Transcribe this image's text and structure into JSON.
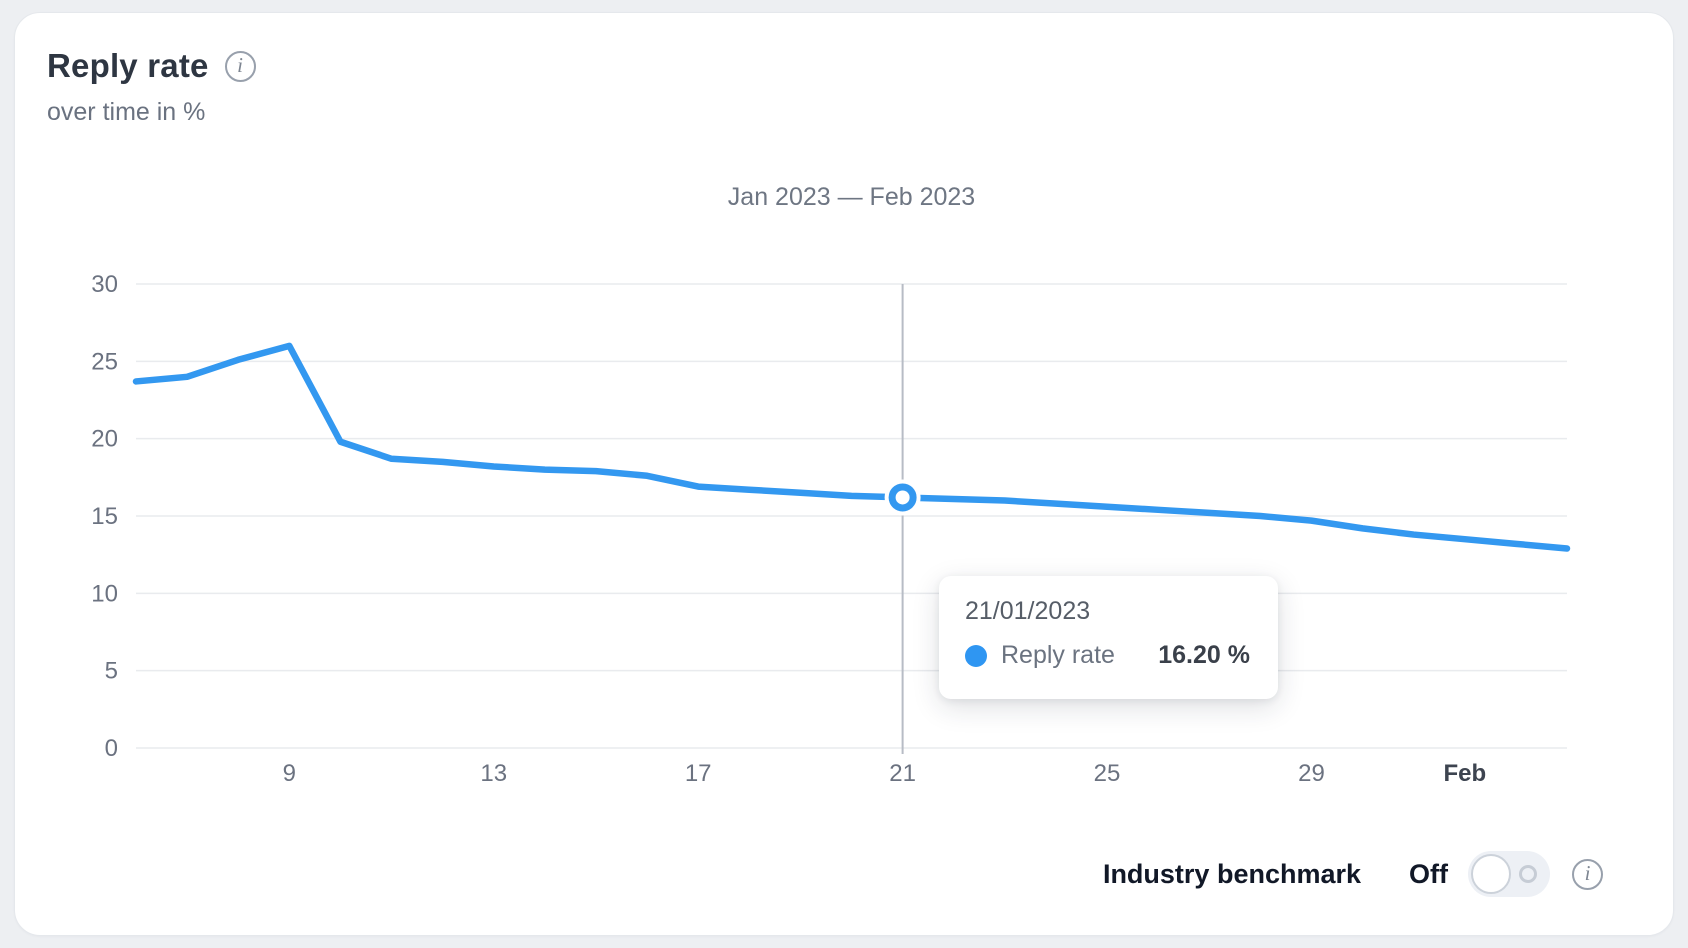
{
  "card": {
    "title": "Reply rate",
    "subtitle": "over time in %"
  },
  "chart_data": {
    "type": "line",
    "title": "Jan 2023 — Feb 2023",
    "x": [
      "Jan 6",
      "Jan 7",
      "Jan 8",
      "Jan 9",
      "Jan 10",
      "Jan 11",
      "Jan 12",
      "Jan 13",
      "Jan 14",
      "Jan 15",
      "Jan 16",
      "Jan 17",
      "Jan 18",
      "Jan 19",
      "Jan 20",
      "Jan 21",
      "Jan 22",
      "Jan 23",
      "Jan 24",
      "Jan 25",
      "Jan 26",
      "Jan 27",
      "Jan 28",
      "Jan 29",
      "Jan 30",
      "Jan 31",
      "Feb 1",
      "Feb 2",
      "Feb 3"
    ],
    "series": [
      {
        "name": "Reply rate",
        "color": "#3398f0",
        "values": [
          23.7,
          24.0,
          25.1,
          26.0,
          19.8,
          18.7,
          18.5,
          18.2,
          18.0,
          17.9,
          17.6,
          16.9,
          16.7,
          16.5,
          16.3,
          16.2,
          16.1,
          16.0,
          15.8,
          15.6,
          15.4,
          15.2,
          15.0,
          14.7,
          14.2,
          13.8,
          13.5,
          13.2,
          12.9
        ]
      }
    ],
    "ylabel": "over time in %",
    "ylim": [
      0,
      30
    ],
    "yticks": [
      0,
      5,
      10,
      15,
      20,
      25,
      30
    ],
    "xtick_labels": [
      "9",
      "13",
      "17",
      "21",
      "25",
      "29",
      "Feb"
    ],
    "xtick_indices": [
      3,
      7,
      11,
      15,
      19,
      23,
      26
    ],
    "grid": "horizontal",
    "legend": "none",
    "highlight": {
      "x_index": 15,
      "date": "21/01/2023",
      "value": 16.2,
      "value_label": "16.20 %"
    }
  },
  "tooltip": {
    "date": "21/01/2023",
    "series_label": "Reply rate",
    "value": "16.20 %"
  },
  "benchmark": {
    "label": "Industry benchmark",
    "state": "Off"
  },
  "icons": {
    "title_info": "info-circle",
    "benchmark_info": "info-circle"
  },
  "colors": {
    "accent_blue": "#3398f0",
    "tooltip_dot_blue": "#2f96f2",
    "grid_line": "#e9ebee",
    "hover_line": "#b7bcc5",
    "axis_text": "#6b7280",
    "card_background": "#ffffff",
    "page_background": "#edeff2"
  }
}
